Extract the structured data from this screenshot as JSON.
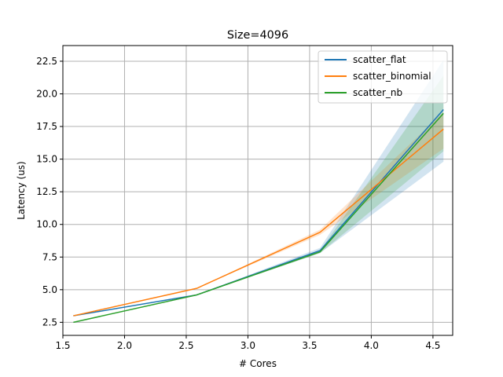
{
  "chart_data": {
    "type": "line",
    "title": "Size=4096",
    "xlabel": "# Cores",
    "ylabel": "Latency (us)",
    "xlim": [
      1.5,
      4.66
    ],
    "ylim": [
      1.5,
      23.7
    ],
    "x_ticks": [
      1.5,
      2.0,
      2.5,
      3.0,
      3.5,
      4.0,
      4.5
    ],
    "x_tick_labels": [
      "1.5",
      "2.0",
      "2.5",
      "3.0",
      "3.5",
      "4.0",
      "4.5"
    ],
    "y_ticks": [
      2.5,
      5.0,
      7.5,
      10.0,
      12.5,
      15.0,
      17.5,
      20.0,
      22.5
    ],
    "y_tick_labels": [
      "2.5",
      "5.0",
      "7.5",
      "10.0",
      "12.5",
      "15.0",
      "17.5",
      "20.0",
      "22.5"
    ],
    "grid": true,
    "legend_position": "top-right",
    "x": [
      1.585,
      2.585,
      3.585,
      4.585
    ],
    "series": [
      {
        "name": "scatter_flat",
        "color": "#1f77b4",
        "values": [
          3.0,
          4.6,
          8.0,
          18.8
        ],
        "lower": [
          3.0,
          4.6,
          7.8,
          14.8
        ],
        "upper": [
          3.0,
          4.6,
          8.2,
          22.6
        ]
      },
      {
        "name": "scatter_binomial",
        "color": "#ff7f0e",
        "values": [
          3.0,
          5.1,
          9.4,
          17.3
        ],
        "lower": [
          3.0,
          5.1,
          9.2,
          15.8
        ],
        "upper": [
          3.0,
          5.1,
          9.6,
          18.6
        ]
      },
      {
        "name": "scatter_nb",
        "color": "#2ca02c",
        "values": [
          2.5,
          4.6,
          7.9,
          18.5
        ],
        "lower": [
          2.5,
          4.6,
          7.8,
          15.6
        ],
        "upper": [
          2.5,
          4.6,
          8.0,
          21.4
        ]
      }
    ]
  }
}
